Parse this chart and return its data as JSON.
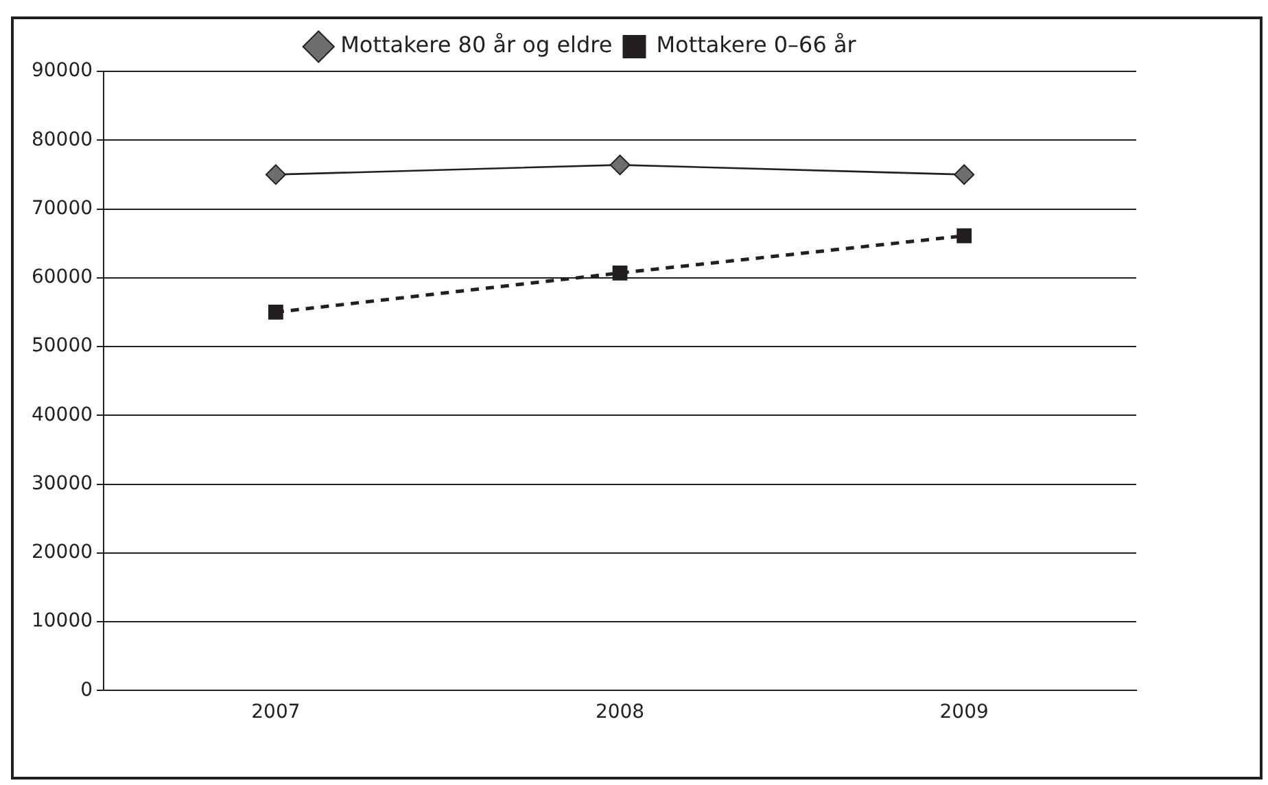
{
  "chart_data": {
    "type": "line",
    "categories": [
      "2007",
      "2008",
      "2009"
    ],
    "series": [
      {
        "name": "Mottakere 80 år og eldre",
        "color": "#6e6e6e",
        "marker": "diamond",
        "line_style": "solid",
        "values": [
          75000,
          76400,
          75000
        ]
      },
      {
        "name": "Mottakere 0–66 år",
        "color": "#231f20",
        "marker": "square",
        "line_style": "dashed",
        "values": [
          55000,
          60700,
          66100
        ]
      }
    ],
    "ylim": [
      0,
      90000
    ],
    "yticks": [
      0,
      10000,
      20000,
      30000,
      40000,
      50000,
      60000,
      70000,
      80000,
      90000
    ],
    "grid": "y",
    "legend": "top"
  }
}
